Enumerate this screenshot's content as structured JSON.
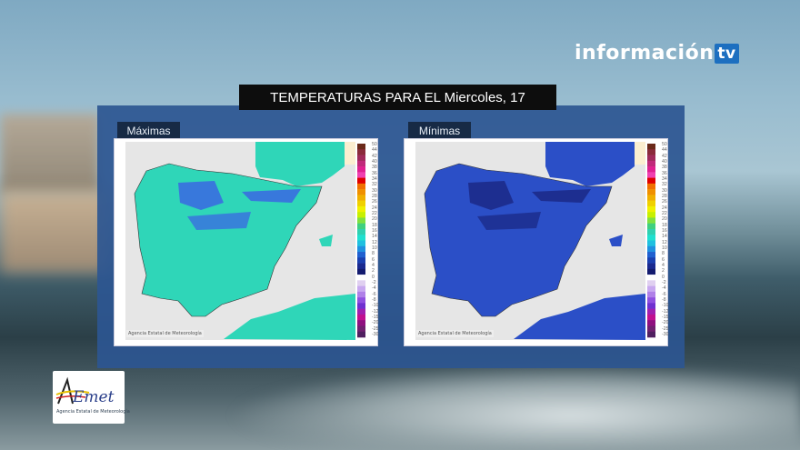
{
  "header": {
    "title": "TEMPERATURAS PARA EL Miercoles, 17"
  },
  "brand": {
    "name": "información",
    "tv": "tv"
  },
  "maps": [
    {
      "tab": "Máximas",
      "credit": "Agencia Estatal de Meteorología",
      "land_color": "#2fd6b8",
      "cold_color": "#3a6ee0"
    },
    {
      "tab": "Mínimas",
      "credit": "Agencia Estatal de Meteorología",
      "land_color": "#2b4fc7",
      "cold_color": "#1c2a8a"
    }
  ],
  "legend": {
    "labels": [
      "50",
      "44",
      "42",
      "40",
      "38",
      "36",
      "34",
      "32",
      "30",
      "28",
      "26",
      "24",
      "22",
      "20",
      "18",
      "16",
      "14",
      "12",
      "10",
      "8",
      "6",
      "4",
      "2",
      "0",
      "-2",
      "-4",
      "-6",
      "-8",
      "-10",
      "-12",
      "-15",
      "-20",
      "-25",
      "-30"
    ],
    "colors": [
      "#6b2a1a",
      "#8a2a3a",
      "#a02a5a",
      "#c02a7a",
      "#e02090",
      "#f040b0",
      "#e00000",
      "#f07000",
      "#f09000",
      "#f0b000",
      "#f0d000",
      "#f0f000",
      "#c8f000",
      "#80e040",
      "#40d080",
      "#30d0b0",
      "#20e0d0",
      "#20c0e0",
      "#2090e0",
      "#2060d0",
      "#1a40b0",
      "#1a2a90",
      "#141c70",
      "#ffffff",
      "#e0d0f0",
      "#c8a8f0",
      "#b080e8",
      "#9050e0",
      "#7030d0",
      "#a020b0",
      "#c01090",
      "#901080",
      "#702070",
      "#502060"
    ]
  },
  "aemet": {
    "logo": "AEmet",
    "subtitle": "Agencia Estatal de Meteorología"
  }
}
